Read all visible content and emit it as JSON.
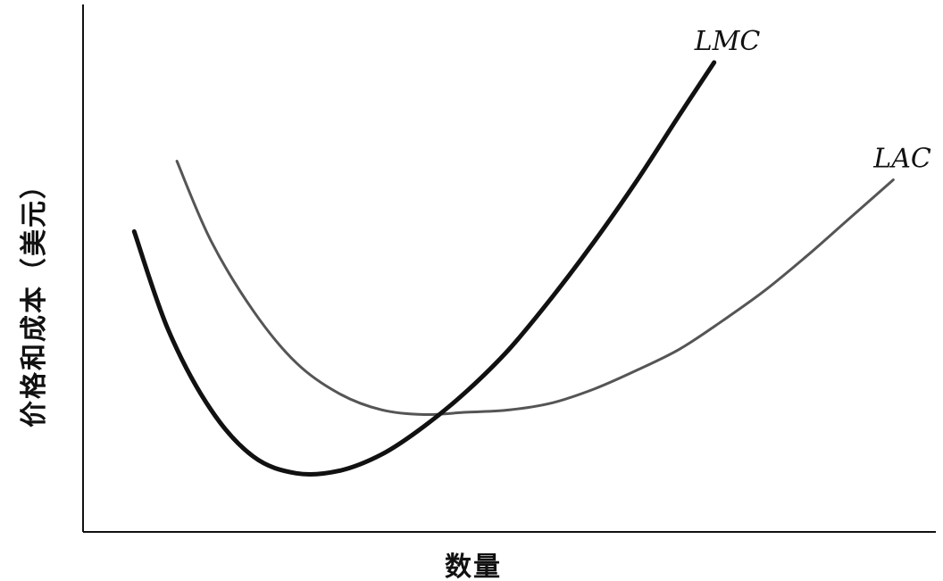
{
  "chart_data": {
    "type": "line",
    "title": "",
    "xlabel": "数量",
    "ylabel": "价格和成本（美元）",
    "xlim": [
      0,
      10
    ],
    "ylim": [
      0,
      10
    ],
    "grid": false,
    "series": [
      {
        "name": "LMC",
        "color": "#111111",
        "x": [
          0.6,
          1.0,
          1.5,
          2.0,
          2.5,
          3.0,
          3.5,
          4.0,
          4.5,
          5.0,
          5.5,
          6.0,
          6.5,
          7.0,
          7.4
        ],
        "y": [
          6.4,
          4.3,
          2.6,
          1.6,
          1.25,
          1.3,
          1.65,
          2.25,
          3.0,
          3.9,
          5.0,
          6.2,
          7.5,
          8.9,
          10.0
        ]
      },
      {
        "name": "LAC",
        "color": "#555555",
        "x": [
          1.1,
          1.5,
          2.0,
          2.5,
          3.0,
          3.5,
          4.0,
          4.5,
          5.0,
          5.5,
          6.0,
          6.5,
          7.0,
          7.5,
          8.0,
          8.5,
          9.0,
          9.5
        ],
        "y": [
          7.9,
          6.2,
          4.7,
          3.6,
          2.95,
          2.6,
          2.5,
          2.55,
          2.6,
          2.75,
          3.05,
          3.45,
          3.9,
          4.5,
          5.15,
          5.9,
          6.7,
          7.5
        ]
      }
    ]
  }
}
